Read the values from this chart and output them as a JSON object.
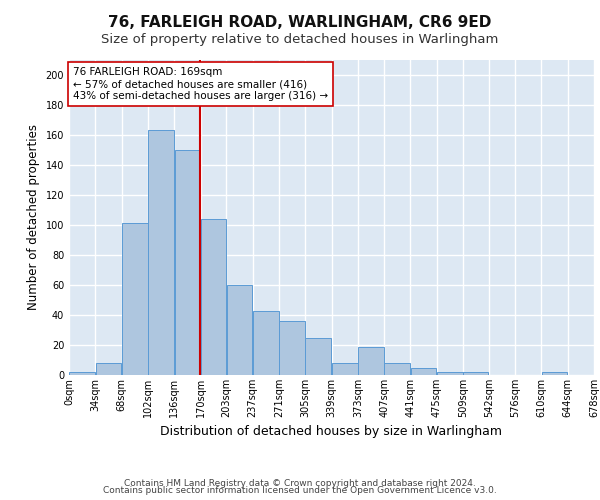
{
  "title": "76, FARLEIGH ROAD, WARLINGHAM, CR6 9ED",
  "subtitle": "Size of property relative to detached houses in Warlingham",
  "xlabel": "Distribution of detached houses by size in Warlingham",
  "ylabel": "Number of detached properties",
  "bar_color": "#aec6df",
  "bar_edge_color": "#5b9bd5",
  "background_color": "#dde8f3",
  "grid_color": "#ffffff",
  "vline_x": 169,
  "vline_color": "#cc0000",
  "annotation_text": "76 FARLEIGH ROAD: 169sqm\n← 57% of detached houses are smaller (416)\n43% of semi-detached houses are larger (316) →",
  "annotation_box_facecolor": "#ffffff",
  "annotation_box_edgecolor": "#cc0000",
  "bin_edges": [
    0,
    34,
    68,
    102,
    136,
    170,
    203,
    237,
    271,
    305,
    339,
    373,
    407,
    441,
    475,
    509,
    542,
    576,
    610,
    644,
    678
  ],
  "bar_heights": [
    2,
    8,
    101,
    163,
    150,
    104,
    60,
    43,
    36,
    25,
    8,
    19,
    8,
    5,
    2,
    2,
    0,
    0,
    2,
    0
  ],
  "ylim": [
    0,
    210
  ],
  "yticks": [
    0,
    20,
    40,
    60,
    80,
    100,
    120,
    140,
    160,
    180,
    200
  ],
  "footer_line1": "Contains HM Land Registry data © Crown copyright and database right 2024.",
  "footer_line2": "Contains public sector information licensed under the Open Government Licence v3.0.",
  "title_fontsize": 11,
  "subtitle_fontsize": 9.5,
  "tick_label_fontsize": 7,
  "ylabel_fontsize": 8.5,
  "xlabel_fontsize": 9,
  "footer_fontsize": 6.5,
  "annotation_fontsize": 7.5
}
